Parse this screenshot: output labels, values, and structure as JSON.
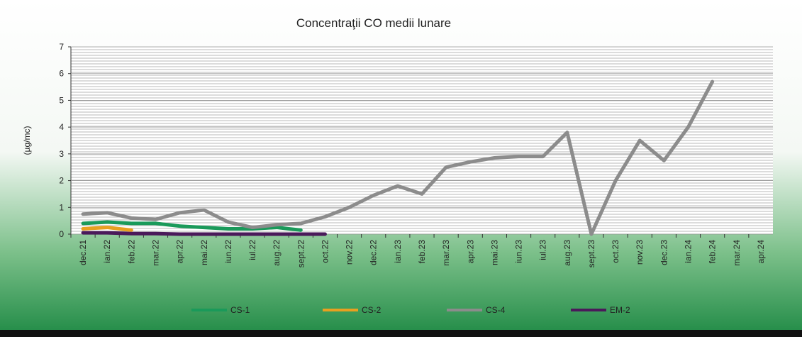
{
  "chart_data": {
    "type": "line",
    "title": "Concentraţii CO medii lunare",
    "y_label": "(µg/mc)",
    "categories": [
      "dec.21",
      "ian.22",
      "feb.22",
      "mar.22",
      "apr.22",
      "mai.22",
      "iun.22",
      "iul.22",
      "aug.22",
      "sept.22",
      "oct.22",
      "nov.22",
      "dec.22",
      "ian.23",
      "feb.23",
      "mar.23",
      "apr.23",
      "mai.23",
      "iun.23",
      "iul.23",
      "aug.23",
      "sept.23",
      "oct.23",
      "nov.23",
      "dec.23",
      "ian.24",
      "feb.24",
      "mar.24",
      "apr.24"
    ],
    "series": [
      {
        "name": "CS-1",
        "color": "#1a9a5a",
        "values": [
          0.4,
          0.45,
          0.4,
          0.4,
          0.3,
          0.25,
          0.2,
          0.2,
          0.25,
          0.15,
          null,
          null,
          null,
          null,
          null,
          null,
          null,
          null,
          null,
          null,
          null,
          null,
          null,
          null,
          null,
          null,
          null,
          null,
          null
        ]
      },
      {
        "name": "CS-2",
        "color": "#e8a020",
        "values": [
          0.2,
          0.25,
          0.15,
          null,
          null,
          null,
          null,
          null,
          null,
          null,
          null,
          null,
          null,
          null,
          null,
          null,
          null,
          null,
          null,
          null,
          null,
          null,
          null,
          null,
          null,
          null,
          null,
          null,
          null
        ]
      },
      {
        "name": "CS-4",
        "color": "#8c8c8c",
        "values": [
          0.75,
          0.8,
          0.6,
          0.55,
          0.8,
          0.9,
          0.45,
          0.25,
          0.35,
          0.4,
          0.65,
          1.0,
          1.45,
          1.8,
          1.5,
          2.5,
          2.7,
          2.85,
          2.9,
          2.9,
          3.8,
          0,
          2.0,
          3.5,
          2.75,
          4.0,
          5.7,
          null,
          null
        ]
      },
      {
        "name": "EM-2",
        "color": "#4a1a5a",
        "values": [
          0.05,
          0.05,
          0.02,
          0.02,
          0,
          0,
          0,
          0,
          0,
          0,
          0,
          null,
          null,
          null,
          null,
          null,
          null,
          null,
          null,
          null,
          null,
          null,
          null,
          null,
          null,
          null,
          null,
          null,
          null
        ]
      }
    ],
    "ylim": [
      0,
      7
    ],
    "yticks": [
      0,
      1,
      2,
      3,
      4,
      5,
      6,
      7
    ],
    "grid": true
  }
}
